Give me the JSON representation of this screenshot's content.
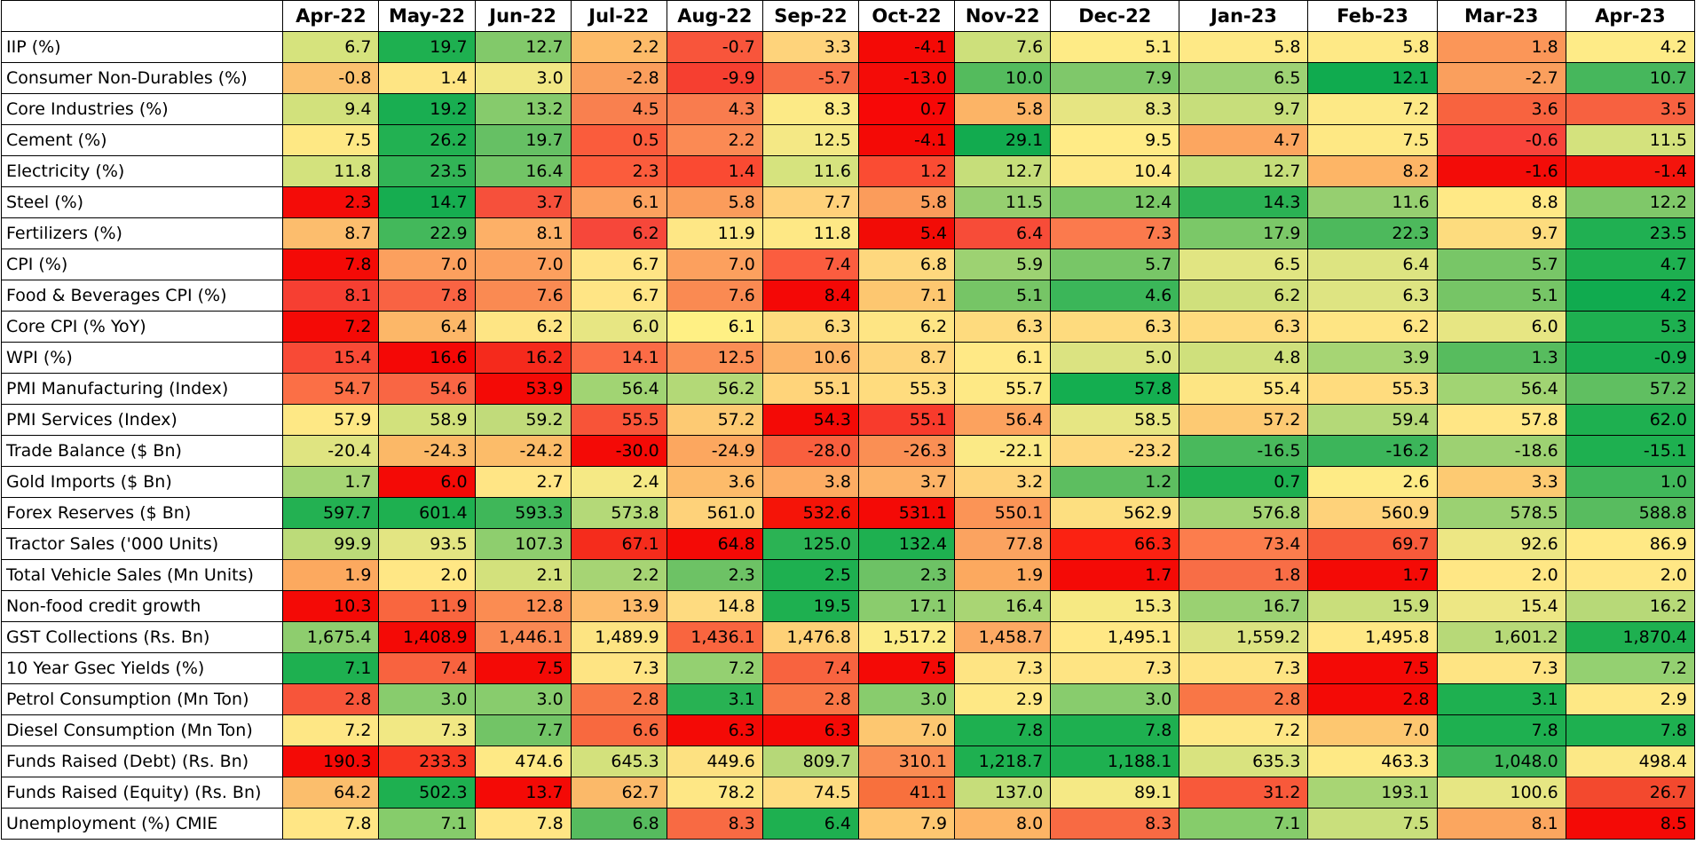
{
  "chart_data": {
    "type": "heatmap",
    "columns": [
      "Apr-22",
      "May-22",
      "Jun-22",
      "Jul-22",
      "Aug-22",
      "Sep-22",
      "Oct-22",
      "Nov-22",
      "Dec-22",
      "Jan-23",
      "Feb-23",
      "Mar-23",
      "Apr-23"
    ],
    "rows": [
      {
        "label": "IIP (%)",
        "values": [
          "6.7",
          "19.7",
          "12.7",
          "2.2",
          "-0.7",
          "3.3",
          "-4.1",
          "7.6",
          "5.1",
          "5.8",
          "5.8",
          "1.8",
          "4.2"
        ],
        "colors": [
          "#d6e37d",
          "#1eb050",
          "#82c96a",
          "#fdbb69",
          "#f8553b",
          "#fed37b",
          "#f40a06",
          "#cde07b",
          "#feeb86",
          "#fee986",
          "#fee986",
          "#fb9658",
          "#feeb87"
        ]
      },
      {
        "label": "Consumer Non-Durables (%)",
        "values": [
          "-0.8",
          "1.4",
          "3.0",
          "-2.8",
          "-9.9",
          "-5.7",
          "-13.0",
          "10.0",
          "7.9",
          "6.5",
          "12.1",
          "-2.7",
          "10.7"
        ],
        "colors": [
          "#fbc16f",
          "#fee584",
          "#f1e884",
          "#fa9e5c",
          "#f63f30",
          "#f86c46",
          "#f40c08",
          "#54bb5d",
          "#7fc86a",
          "#9ed274",
          "#10ab4f",
          "#fa9f5d",
          "#46b75c"
        ]
      },
      {
        "label": "Core Industries (%)",
        "values": [
          "9.4",
          "19.2",
          "13.2",
          "4.5",
          "4.3",
          "8.3",
          "0.7",
          "5.8",
          "8.3",
          "9.7",
          "7.2",
          "3.6",
          "3.5"
        ],
        "colors": [
          "#d2e17c",
          "#19ae51",
          "#86cb6c",
          "#f9804f",
          "#f97c4e",
          "#fcea86",
          "#f70807",
          "#fcb466",
          "#e6e582",
          "#c7de7b",
          "#fde986",
          "#f8633f",
          "#f76140"
        ]
      },
      {
        "label": "Cement (%)",
        "values": [
          "7.5",
          "26.2",
          "19.7",
          "0.5",
          "2.2",
          "12.5",
          "-4.1",
          "29.1",
          "9.5",
          "4.7",
          "7.5",
          "-0.6",
          "11.5"
        ],
        "colors": [
          "#fee884",
          "#22b152",
          "#66c064",
          "#fa5c3c",
          "#fb8a54",
          "#f4e885",
          "#f40a06",
          "#12ab4f",
          "#ffeb86",
          "#fca660",
          "#fee884",
          "#f8443a",
          "#d4e27d"
        ]
      },
      {
        "label": "Electricity (%)",
        "values": [
          "11.8",
          "23.5",
          "16.4",
          "2.3",
          "1.4",
          "11.6",
          "1.2",
          "12.7",
          "10.4",
          "12.7",
          "8.2",
          "-1.6",
          "-1.4"
        ],
        "colors": [
          "#d3e27d",
          "#32b456",
          "#72c466",
          "#fb5c3c",
          "#fa4a32",
          "#d6e37e",
          "#fa4c33",
          "#c6de7a",
          "#fee885",
          "#c6de7a",
          "#fdb566",
          "#f30c08",
          "#f4140c"
        ]
      },
      {
        "label": "Steel (%)",
        "values": [
          "2.3",
          "14.7",
          "3.7",
          "6.1",
          "5.8",
          "7.7",
          "5.8",
          "11.5",
          "12.4",
          "14.3",
          "11.6",
          "8.8",
          "12.2"
        ],
        "colors": [
          "#f40c08",
          "#16ad50",
          "#f6503b",
          "#fca25f",
          "#fb9c5b",
          "#fed17a",
          "#fb9c5b",
          "#96cf70",
          "#7ac767",
          "#2bb254",
          "#96cf70",
          "#ffe986",
          "#7fc869"
        ]
      },
      {
        "label": "Fertilizers (%)",
        "values": [
          "8.7",
          "22.9",
          "8.1",
          "6.2",
          "11.9",
          "11.8",
          "5.4",
          "6.4",
          "7.3",
          "17.9",
          "22.3",
          "9.7",
          "23.5"
        ],
        "colors": [
          "#fcbd6d",
          "#43b85b",
          "#fdb067",
          "#f6473a",
          "#fee785",
          "#fee885",
          "#f20c06",
          "#f74c38",
          "#fb7a4d",
          "#7bc868",
          "#4db95c",
          "#fddc7e",
          "#20b052"
        ]
      },
      {
        "label": "CPI (%)",
        "values": [
          "7.8",
          "7.0",
          "7.0",
          "6.7",
          "7.0",
          "7.4",
          "6.8",
          "5.9",
          "5.7",
          "6.5",
          "6.4",
          "5.7",
          "4.7"
        ],
        "colors": [
          "#f40a06",
          "#fca05e",
          "#fca05e",
          "#ffe485",
          "#fca05e",
          "#fb5d3f",
          "#fed87e",
          "#9dd272",
          "#78c667",
          "#e1e582",
          "#dde481",
          "#78c667",
          "#1eb050"
        ]
      },
      {
        "label": "Food & Beverages CPI (%)",
        "values": [
          "8.1",
          "7.8",
          "7.6",
          "6.7",
          "7.6",
          "8.4",
          "7.1",
          "5.1",
          "4.6",
          "6.2",
          "6.3",
          "5.1",
          "4.2"
        ],
        "colors": [
          "#f63f32",
          "#f96343",
          "#fa8a52",
          "#ffe585",
          "#fa8a52",
          "#f40806",
          "#fdc770",
          "#76c566",
          "#3bb659",
          "#d0e07c",
          "#dee482",
          "#76c566",
          "#10ab4f"
        ]
      },
      {
        "label": "Core CPI (% YoY)",
        "values": [
          "7.2",
          "6.4",
          "6.2",
          "6.0",
          "6.1",
          "6.3",
          "6.2",
          "6.3",
          "6.3",
          "6.3",
          "6.2",
          "6.0",
          "5.3"
        ],
        "colors": [
          "#f40a06",
          "#fcb768",
          "#fee584",
          "#e7e683",
          "#fff084",
          "#fedb7e",
          "#fee584",
          "#fedb7e",
          "#fedb7e",
          "#fedb7e",
          "#fee584",
          "#e7e683",
          "#1eb050"
        ]
      },
      {
        "label": "WPI (%)",
        "values": [
          "15.4",
          "16.6",
          "16.2",
          "14.1",
          "12.5",
          "10.6",
          "8.7",
          "6.1",
          "5.0",
          "4.8",
          "3.9",
          "1.3",
          "-0.9"
        ],
        "colors": [
          "#f84a36",
          "#f40806",
          "#f52a1c",
          "#fb6b46",
          "#fb8e55",
          "#fdb367",
          "#fed47a",
          "#ffe986",
          "#dbe381",
          "#cfe07c",
          "#a6d574",
          "#57bc5e",
          "#19ae51"
        ]
      },
      {
        "label": "PMI Manufacturing (Index)",
        "values": [
          "54.7",
          "54.6",
          "53.9",
          "56.4",
          "56.2",
          "55.1",
          "55.3",
          "55.7",
          "57.8",
          "55.4",
          "55.3",
          "56.4",
          "57.2"
        ],
        "colors": [
          "#fb6f46",
          "#f96644",
          "#f40a06",
          "#a1d473",
          "#b3d977",
          "#ffd47a",
          "#ffdc7e",
          "#fee985",
          "#14ae50",
          "#fde583",
          "#ffdc7e",
          "#a1d473",
          "#60bf61"
        ]
      },
      {
        "label": "PMI Services (Index)",
        "values": [
          "57.9",
          "58.9",
          "59.2",
          "55.5",
          "57.2",
          "54.3",
          "55.1",
          "56.4",
          "58.5",
          "57.2",
          "59.4",
          "57.8",
          "62.0"
        ],
        "colors": [
          "#fee885",
          "#d2e17c",
          "#c1db7a",
          "#f85438",
          "#fdca73",
          "#f40a06",
          "#f83b2c",
          "#fca25e",
          "#e6e683",
          "#fdca73",
          "#b4d978",
          "#ffe685",
          "#1eb050"
        ]
      },
      {
        "label": "Trade Balance ($ Bn)",
        "values": [
          "-20.4",
          "-24.3",
          "-24.2",
          "-30.0",
          "-24.9",
          "-28.0",
          "-26.3",
          "-22.1",
          "-23.2",
          "-16.5",
          "-16.2",
          "-18.6",
          "-15.1"
        ],
        "colors": [
          "#dfe481",
          "#fbb867",
          "#fcbc69",
          "#f40a06",
          "#fca75f",
          "#f95f3e",
          "#fa8f54",
          "#fbea86",
          "#fed87e",
          "#49b95c",
          "#3cb55a",
          "#9dd172",
          "#1eb050"
        ]
      },
      {
        "label": "Gold Imports ($ Bn)",
        "values": [
          "1.7",
          "6.0",
          "2.7",
          "2.4",
          "3.6",
          "3.8",
          "3.7",
          "3.2",
          "1.2",
          "0.7",
          "2.6",
          "3.3",
          "1.0"
        ],
        "colors": [
          "#a6d574",
          "#f40a06",
          "#ffe585",
          "#f5e985",
          "#fdbb6a",
          "#fdac63",
          "#fdb367",
          "#fed37a",
          "#5dbe60",
          "#1eb050",
          "#feeb86",
          "#fdca72",
          "#40b75a"
        ]
      },
      {
        "label": "Forex Reserves ($ Bn)",
        "values": [
          "597.7",
          "601.4",
          "593.3",
          "573.8",
          "561.0",
          "532.6",
          "531.1",
          "550.1",
          "562.9",
          "576.8",
          "560.9",
          "578.5",
          "588.8"
        ],
        "colors": [
          "#23b152",
          "#1eb050",
          "#3fb759",
          "#b4d978",
          "#fed27a",
          "#f51408",
          "#f40a06",
          "#fb9456",
          "#fddf80",
          "#a4d474",
          "#fed27a",
          "#9bd172",
          "#58bc5f"
        ]
      },
      {
        "label": "Tractor Sales ('000 Units)",
        "values": [
          "99.9",
          "93.5",
          "107.3",
          "67.1",
          "64.8",
          "125.0",
          "132.4",
          "77.8",
          "66.3",
          "73.4",
          "69.7",
          "92.6",
          "86.9"
        ],
        "colors": [
          "#bcdb79",
          "#e3e582",
          "#8ece6e",
          "#f52c1c",
          "#f40a06",
          "#2bb354",
          "#1eb050",
          "#fba360",
          "#fb2212",
          "#fc7d4d",
          "#f75a3a",
          "#ede784",
          "#ffe985"
        ]
      },
      {
        "label": "Total Vehicle Sales (Mn Units)",
        "values": [
          "1.9",
          "2.0",
          "2.1",
          "2.2",
          "2.3",
          "2.5",
          "2.3",
          "1.9",
          "1.7",
          "1.8",
          "1.7",
          "2.0",
          "2.0"
        ],
        "colors": [
          "#fca95f",
          "#ffe785",
          "#d3e17c",
          "#a6d474",
          "#6dc265",
          "#1eb050",
          "#6dc265",
          "#fca95f",
          "#f40a06",
          "#f86d46",
          "#f40a06",
          "#ffe785",
          "#ffe785"
        ]
      },
      {
        "label": "Non-food credit growth",
        "values": [
          "10.3",
          "11.9",
          "12.8",
          "13.9",
          "14.8",
          "19.5",
          "17.1",
          "16.4",
          "15.3",
          "16.7",
          "15.9",
          "15.4",
          "16.2"
        ],
        "colors": [
          "#f40a06",
          "#f9663f",
          "#fb8c52",
          "#fdbb6b",
          "#fedb80",
          "#1eb050",
          "#8acc6d",
          "#a9d574",
          "#f6e983",
          "#9ad172",
          "#c9de7b",
          "#ede784",
          "#b7d978"
        ]
      },
      {
        "label": "GST Collections (Rs. Bn)",
        "values": [
          "1,675.4",
          "1,408.9",
          "1,446.1",
          "1,489.9",
          "1,436.1",
          "1,476.8",
          "1,517.2",
          "1,458.7",
          "1,495.1",
          "1,559.2",
          "1,495.8",
          "1,601.2",
          "1,870.4"
        ],
        "colors": [
          "#8ecd6e",
          "#f40a06",
          "#fa8953",
          "#fde482",
          "#f9653f",
          "#fed177",
          "#fbec86",
          "#fca963",
          "#ffe885",
          "#dbe381",
          "#ffe885",
          "#b7d978",
          "#1eb050"
        ]
      },
      {
        "label": "10 Year Gsec Yields (%)",
        "values": [
          "7.1",
          "7.4",
          "7.5",
          "7.3",
          "7.2",
          "7.4",
          "7.5",
          "7.3",
          "7.3",
          "7.3",
          "7.5",
          "7.3",
          "7.2"
        ],
        "colors": [
          "#1eb050",
          "#f8633f",
          "#f40a06",
          "#fee483",
          "#94d071",
          "#f8633f",
          "#f40a06",
          "#fee483",
          "#fee483",
          "#fee483",
          "#f40a06",
          "#fee483",
          "#94d071"
        ]
      },
      {
        "label": "Petrol Consumption (Mn Ton)",
        "values": [
          "2.8",
          "3.0",
          "3.0",
          "2.8",
          "3.1",
          "2.8",
          "3.0",
          "2.9",
          "3.0",
          "2.8",
          "2.8",
          "3.1",
          "2.9"
        ],
        "colors": [
          "#f7553a",
          "#88cc6d",
          "#88cc6d",
          "#f97646",
          "#28b253",
          "#f97646",
          "#88cc6d",
          "#fee885",
          "#88cc6d",
          "#f97646",
          "#f40a06",
          "#1eb050",
          "#fee885"
        ]
      },
      {
        "label": "Diesel Consumption (Mn Ton)",
        "values": [
          "7.2",
          "7.3",
          "7.7",
          "6.6",
          "6.3",
          "6.3",
          "7.0",
          "7.8",
          "7.8",
          "7.2",
          "7.0",
          "7.8",
          "7.8"
        ],
        "colors": [
          "#fee785",
          "#f1e884",
          "#72c466",
          "#f8693f",
          "#f40a06",
          "#f40a06",
          "#fdc770",
          "#1eb050",
          "#1eb050",
          "#fee785",
          "#fdc770",
          "#1eb050",
          "#1eb050"
        ]
      },
      {
        "label": "Funds Raised (Debt) (Rs. Bn)",
        "values": [
          "190.3",
          "233.3",
          "474.6",
          "645.3",
          "449.6",
          "809.7",
          "310.1",
          "1,218.7",
          "1,188.1",
          "635.3",
          "463.3",
          "1,048.0",
          "498.4"
        ],
        "colors": [
          "#f40a06",
          "#f83923",
          "#fee985",
          "#d3e17c",
          "#fde181",
          "#b6d878",
          "#fa8c53",
          "#1eb050",
          "#1eb050",
          "#d9e37f",
          "#fee985",
          "#3eb759",
          "#fce886"
        ]
      },
      {
        "label": "Funds Raised (Equity) (Rs. Bn)",
        "values": [
          "64.2",
          "502.3",
          "13.7",
          "62.7",
          "78.2",
          "74.5",
          "41.1",
          "137.0",
          "89.1",
          "31.2",
          "193.1",
          "100.6",
          "26.7"
        ],
        "colors": [
          "#fbbe6c",
          "#1eb050",
          "#f40a06",
          "#fbb969",
          "#fee785",
          "#fedc80",
          "#f8703d",
          "#c6dd7a",
          "#f5e985",
          "#f8593a",
          "#a8d574",
          "#e6e683",
          "#f3492e"
        ]
      },
      {
        "label": "Unemployment (%) CMIE",
        "values": [
          "7.8",
          "7.1",
          "7.8",
          "6.8",
          "8.3",
          "6.4",
          "7.9",
          "8.0",
          "8.3",
          "7.1",
          "7.5",
          "8.1",
          "8.5"
        ],
        "colors": [
          "#ffe685",
          "#86cc6b",
          "#ffe685",
          "#56bb5e",
          "#f86a43",
          "#1eb050",
          "#fec771",
          "#fdb465",
          "#f86a43",
          "#86cc6b",
          "#c9df7c",
          "#fba65f",
          "#f40a06"
        ]
      }
    ]
  }
}
